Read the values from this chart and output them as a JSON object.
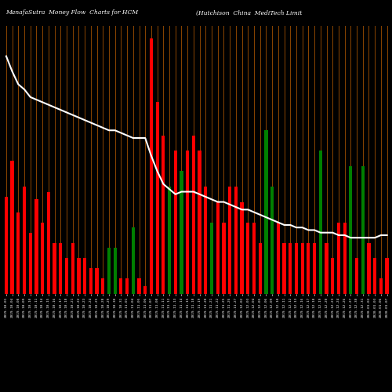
{
  "title_left": "ManafaSutra  Money Flow  Charts for HCM",
  "title_right": "(Hutchison  China  MediTech Limit",
  "background_color": "#000000",
  "bar_colors": [
    "red",
    "red",
    "red",
    "red",
    "red",
    "red",
    "red",
    "red",
    "red",
    "red",
    "red",
    "red",
    "red",
    "red",
    "red",
    "red",
    "red",
    "green",
    "green",
    "red",
    "red",
    "green",
    "red",
    "red",
    "red",
    "red",
    "red",
    "green",
    "red",
    "green",
    "red",
    "red",
    "red",
    "red",
    "green",
    "red",
    "red",
    "red",
    "red",
    "red",
    "red",
    "red",
    "red",
    "green",
    "green",
    "red",
    "red",
    "red",
    "red",
    "red",
    "red",
    "red",
    "green",
    "red",
    "red",
    "red",
    "red",
    "green",
    "red",
    "green",
    "red",
    "red",
    "red",
    "red"
  ],
  "bar_heights": [
    38,
    52,
    32,
    42,
    24,
    37,
    28,
    40,
    20,
    20,
    14,
    20,
    14,
    14,
    10,
    10,
    6,
    18,
    18,
    6,
    6,
    26,
    6,
    3,
    100,
    75,
    62,
    42,
    56,
    48,
    56,
    62,
    56,
    42,
    28,
    36,
    28,
    42,
    42,
    36,
    28,
    28,
    20,
    64,
    42,
    28,
    20,
    20,
    20,
    20,
    20,
    20,
    56,
    20,
    14,
    28,
    28,
    50,
    14,
    50,
    20,
    14,
    6,
    14
  ],
  "line_values": [
    93,
    87,
    82,
    80,
    77,
    76,
    75,
    74,
    73,
    72,
    71,
    70,
    69,
    68,
    67,
    66,
    65,
    64,
    64,
    63,
    62,
    61,
    61,
    61,
    54,
    48,
    43,
    41,
    39,
    40,
    40,
    40,
    39,
    38,
    37,
    36,
    36,
    35,
    34,
    33,
    33,
    32,
    31,
    30,
    29,
    28,
    27,
    27,
    26,
    26,
    25,
    25,
    24,
    24,
    24,
    23,
    23,
    22,
    22,
    22,
    22,
    22,
    23,
    23
  ],
  "grid_color": "#8B4500",
  "line_color": "#ffffff",
  "n_bars": 64,
  "xlabels": [
    "2019-10-01",
    "2019-10-04",
    "2019-10-08",
    "2019-10-09",
    "2019-10-10",
    "2019-10-11",
    "2019-10-14",
    "2019-10-15",
    "2019-10-16",
    "2019-10-17",
    "2019-10-18",
    "2019-10-21",
    "2019-10-22",
    "2019-10-23",
    "2019-10-24",
    "2019-10-25",
    "2019-10-28",
    "2019-10-29",
    "2019-10-30",
    "2019-10-31",
    "2019-11-01",
    "2019-11-04",
    "2019-11-05",
    "2019-11-06",
    "2019-11-07",
    "2019-11-08",
    "2019-11-11",
    "2019-11-12",
    "2019-11-13",
    "2019-11-14",
    "2019-11-15",
    "2019-11-18",
    "2019-11-19",
    "2019-11-20",
    "2019-11-21",
    "2019-11-22",
    "2019-11-25",
    "2019-11-26",
    "2019-11-27",
    "2019-12-02",
    "2019-12-03",
    "2019-12-04",
    "2019-12-05",
    "2019-12-06",
    "2019-12-09",
    "2019-12-10",
    "2019-12-11",
    "2019-12-12",
    "2019-12-13",
    "2019-12-16",
    "2019-12-17",
    "2019-12-18",
    "2019-12-19",
    "2019-12-20",
    "2019-12-23",
    "2019-12-24",
    "2019-12-26",
    "2019-12-27",
    "2019-12-30",
    "2019-12-31",
    "2020-01-02",
    "2020-01-03",
    "2020-01-06",
    "2020-01-07"
  ],
  "ylim_max": 105,
  "title_fontsize": 5.5,
  "label_fontsize": 3.2,
  "line_width": 1.5
}
